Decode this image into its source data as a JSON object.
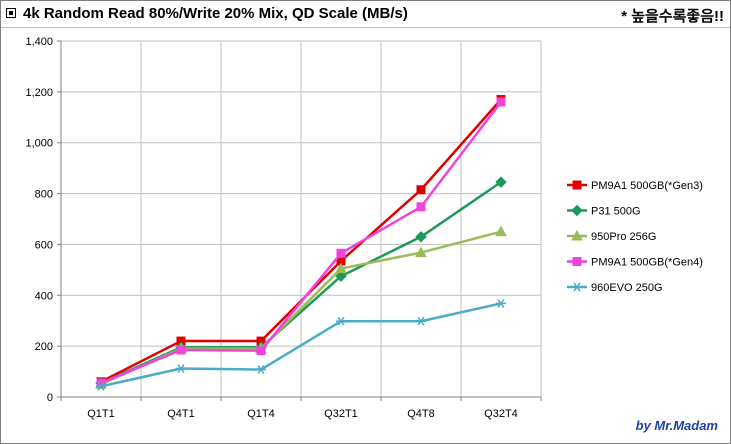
{
  "header": {
    "title": "4k Random Read 80%/Write 20% Mix, QD Scale (MB/s)",
    "note": "* 높을수록좋음!!"
  },
  "footer": {
    "author": "by Mr.Madam"
  },
  "chart_data": {
    "type": "line",
    "title": "4k Random Read 80%/Write 20% Mix, QD Scale (MB/s)",
    "categories": [
      "Q1T1",
      "Q4T1",
      "Q1T4",
      "Q32T1",
      "Q4T8",
      "Q32T4"
    ],
    "ylim": [
      0,
      1400
    ],
    "yticks": [
      0,
      200,
      400,
      600,
      800,
      1000,
      1200,
      1400
    ],
    "ytick_labels": [
      "0",
      "200",
      "400",
      "600",
      "800",
      "1,000",
      "1,200",
      "1,400"
    ],
    "grid": true,
    "legend_position": "right",
    "series": [
      {
        "name": "PM9A1 500GB(*Gen3)",
        "color": "#e00000",
        "marker": "square",
        "values": [
          60,
          220,
          220,
          535,
          815,
          1170
        ]
      },
      {
        "name": "P31 500G",
        "color": "#1a9a5a",
        "marker": "diamond",
        "values": [
          55,
          195,
          195,
          475,
          630,
          845
        ]
      },
      {
        "name": "950Pro 256G",
        "color": "#9bbb59",
        "marker": "triangle",
        "values": [
          50,
          190,
          190,
          505,
          568,
          650
        ]
      },
      {
        "name": "PM9A1 500GB(*Gen4)",
        "color": "#ee44dd",
        "marker": "square",
        "values": [
          55,
          185,
          182,
          565,
          748,
          1160
        ]
      },
      {
        "name": "960EVO 250G",
        "color": "#4aacc6",
        "marker": "star",
        "values": [
          42,
          112,
          108,
          298,
          298,
          368
        ]
      }
    ]
  }
}
